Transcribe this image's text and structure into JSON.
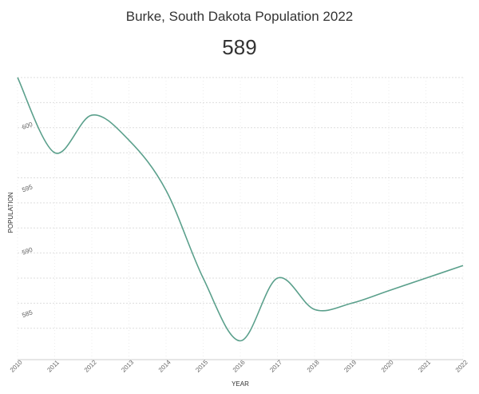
{
  "header": {
    "title": "Burke, South Dakota Population 2022",
    "value": "589"
  },
  "chart_data": {
    "type": "line",
    "title": "Burke, South Dakota Population 2022",
    "xlabel": "YEAR",
    "ylabel": "POPULATION",
    "x": [
      2010,
      2011,
      2012,
      2013,
      2014,
      2015,
      2016,
      2017,
      2018,
      2019,
      2020,
      2021,
      2022
    ],
    "series": [
      {
        "values": [
          604,
          598,
          601,
          599,
          595,
          588,
          583,
          588,
          585.5,
          586,
          587,
          588,
          589
        ]
      }
    ],
    "xlim": [
      2010,
      2022
    ],
    "ylim": [
      581.5,
      604
    ],
    "yticks": [
      585,
      590,
      595,
      600
    ],
    "line_color": "#5ba08c",
    "grid": true
  }
}
